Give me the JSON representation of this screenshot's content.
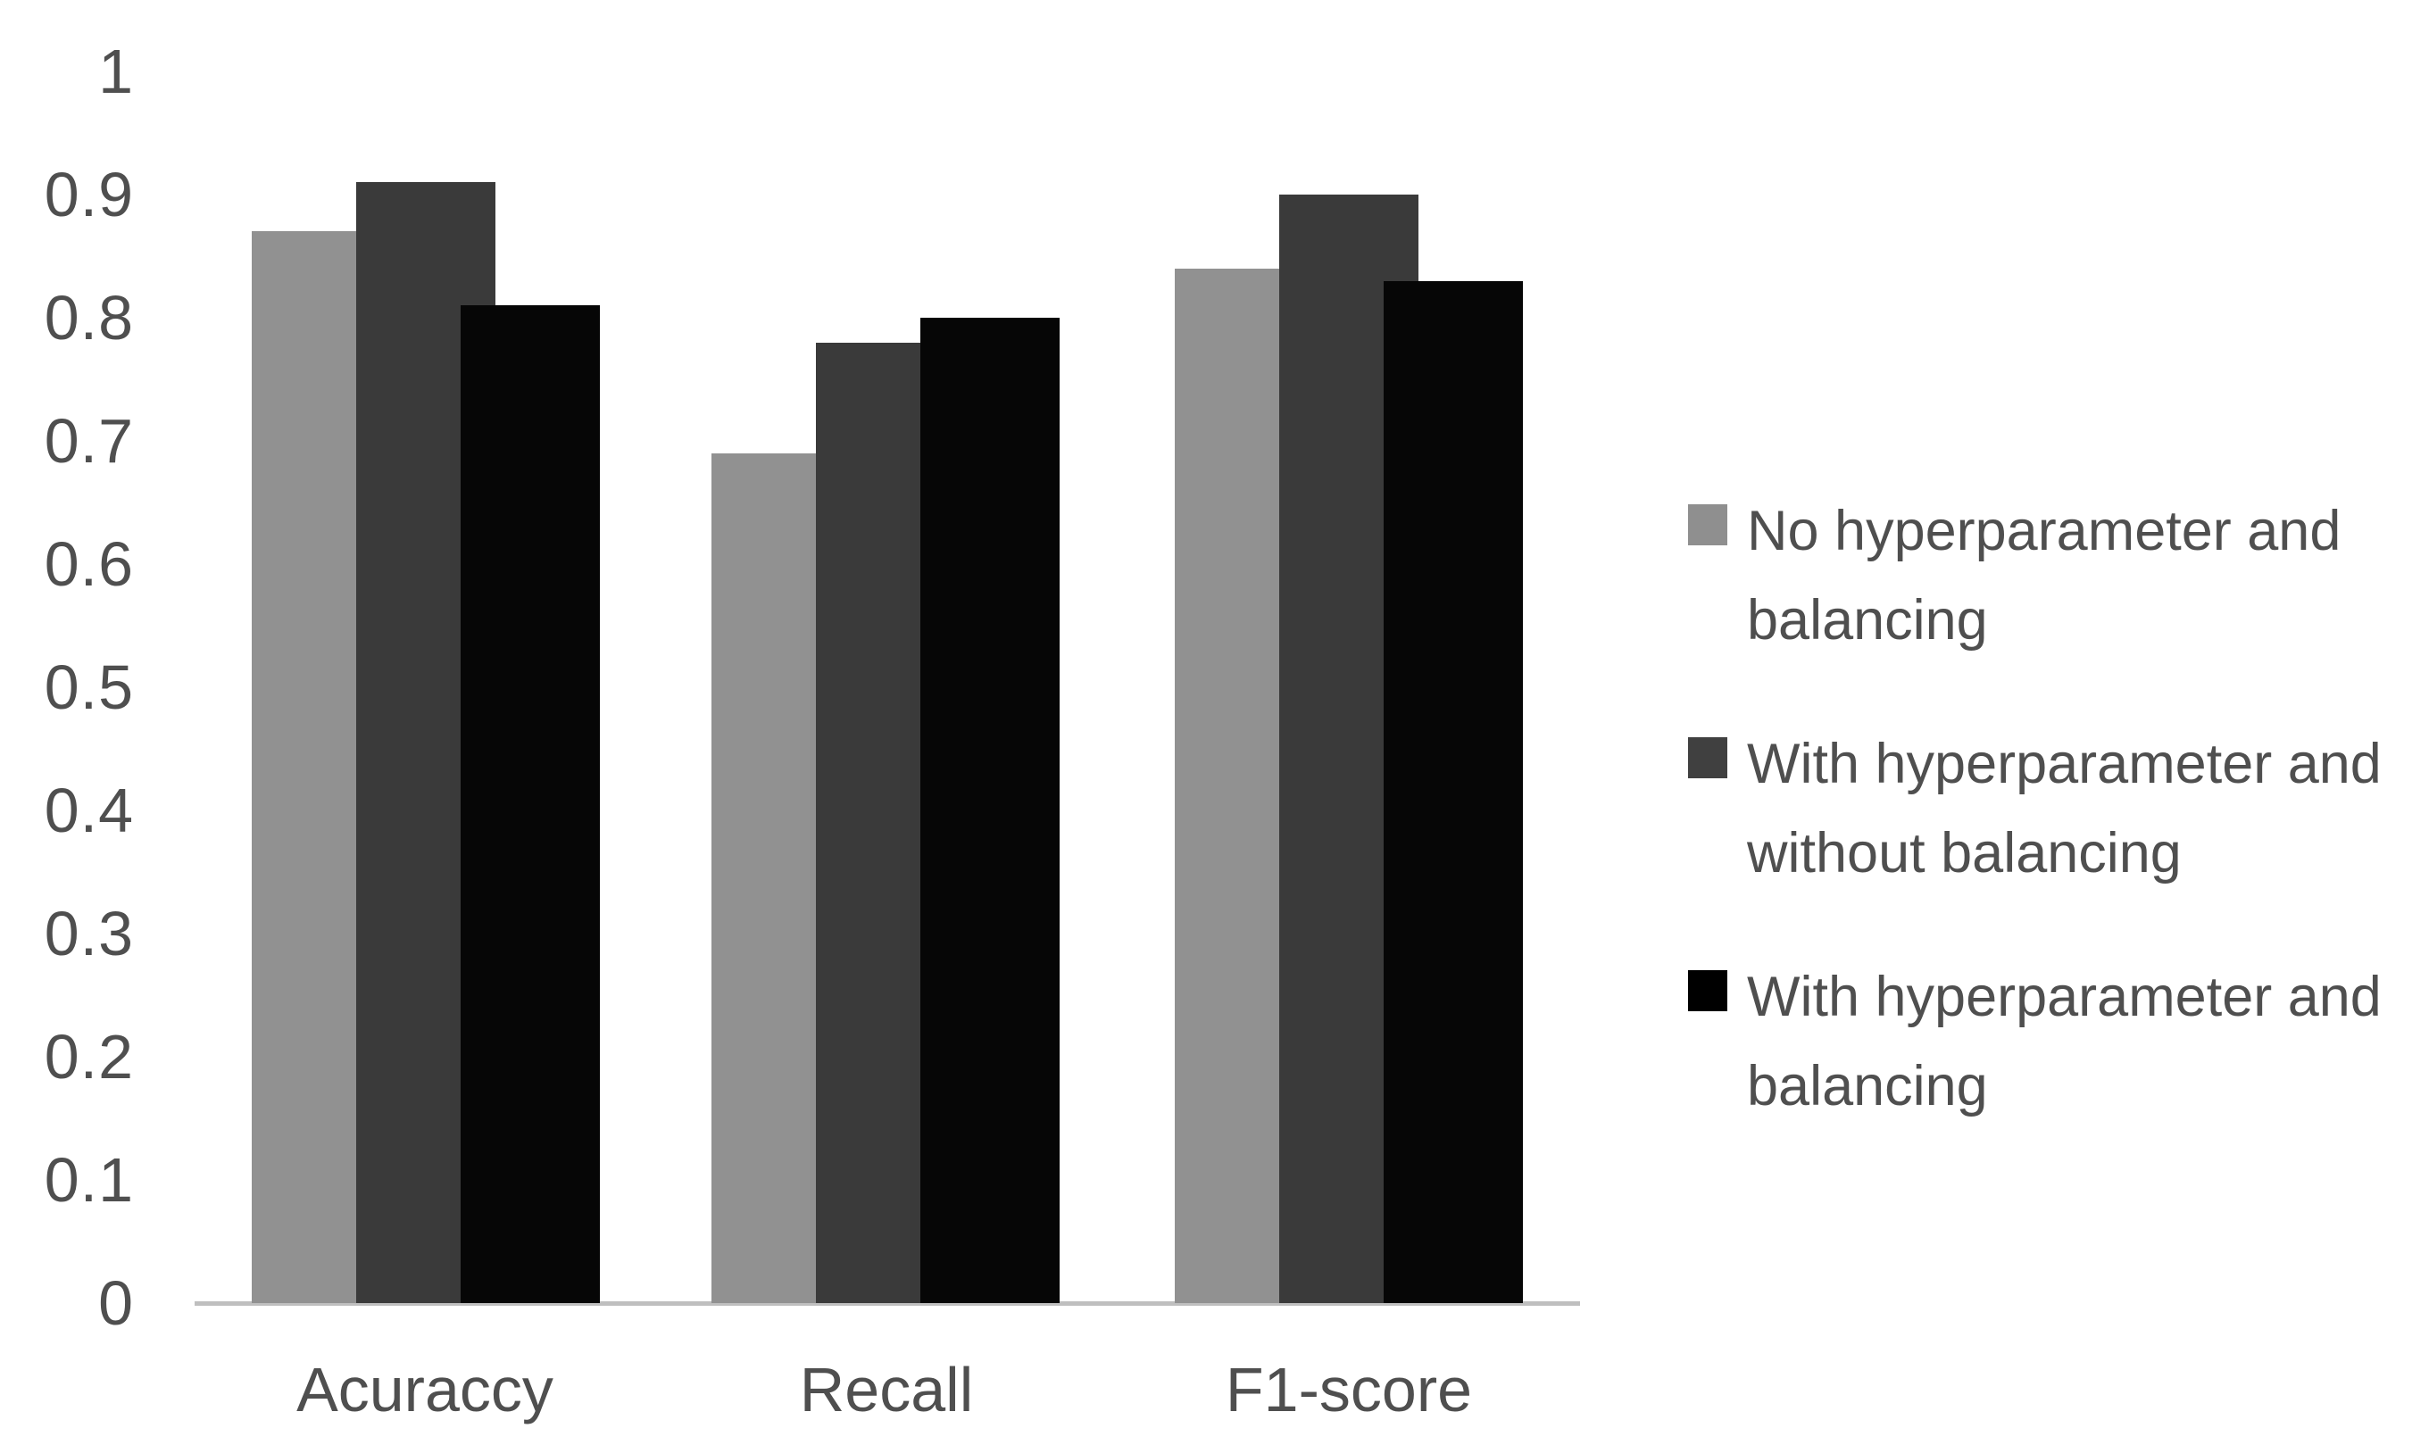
{
  "chart_data": {
    "type": "bar",
    "title": "",
    "xlabel": "",
    "ylabel": "",
    "categories": [
      "Acuraccy",
      "Recall",
      "F1-score"
    ],
    "series": [
      {
        "name": "No hyperparameter and balancing",
        "color": "#919191",
        "swatch_color": "#8f8f8f",
        "values": [
          0.87,
          0.69,
          0.84
        ]
      },
      {
        "name": "With hyperparameter and without balancing",
        "color": "#3a3a3a",
        "swatch_color": "#404040",
        "values": [
          0.91,
          0.78,
          0.9
        ]
      },
      {
        "name": "With hyperparameter and balancing",
        "color": "#060606",
        "swatch_color": "#000000",
        "values": [
          0.81,
          0.8,
          0.83
        ]
      }
    ],
    "y_ticks": [
      {
        "label": "1",
        "value": 1.0
      },
      {
        "label": "0.9",
        "value": 0.9
      },
      {
        "label": "0.8",
        "value": 0.8
      },
      {
        "label": "0.7",
        "value": 0.7
      },
      {
        "label": "0.6",
        "value": 0.6
      },
      {
        "label": "0.5",
        "value": 0.5
      },
      {
        "label": "0.4",
        "value": 0.4
      },
      {
        "label": "0.3",
        "value": 0.3
      },
      {
        "label": "0.2",
        "value": 0.2
      },
      {
        "label": "0.1",
        "value": 0.1
      },
      {
        "label": "0",
        "value": 0.0
      }
    ],
    "ylim": [
      0,
      1
    ],
    "grid": "off",
    "legend_position": "right",
    "colors": {
      "axis_line": "#bfbfbf",
      "text": "#4f4f4f",
      "background": "#ffffff"
    }
  }
}
